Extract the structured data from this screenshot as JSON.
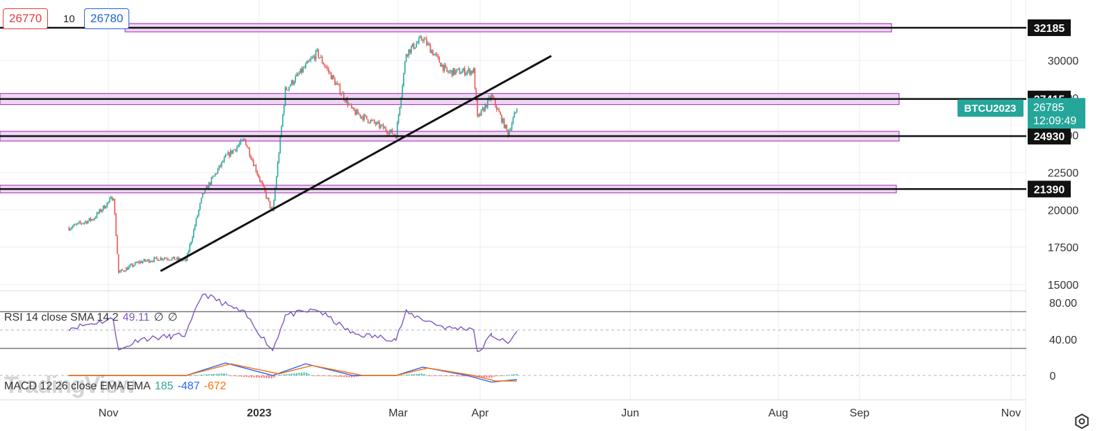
{
  "header": {
    "bid": "26770",
    "spread": "10",
    "ask": "26780"
  },
  "symbol": {
    "name": "BTCU2023",
    "price": "26785",
    "countdown": "12:09:49"
  },
  "rsi_label": {
    "text": "RSI 14 close SMA 14 2",
    "value": "49.11",
    "extra1": "∅",
    "extra2": "∅"
  },
  "macd_label": {
    "text": "MACD 12 26 close EMA EMA",
    "hist": "185",
    "macd": "-487",
    "signal": "-672"
  },
  "watermark": "TradingView",
  "colors": {
    "up": "#26a69a",
    "down": "#ef5350",
    "zone_fill": "#e9c8f0",
    "zone_border": "#9c27b0",
    "rsi": "#7e57c2",
    "macd": "#2962ff",
    "signal": "#ff6d00",
    "symbol_badge": "#26a69a"
  },
  "chart_data": {
    "type": "candlestick",
    "price_axis_ticks": [
      "15000",
      "17500",
      "20000",
      "22500",
      "25000",
      "27500",
      "30000"
    ],
    "level_labels": [
      "32185",
      "27415",
      "24930",
      "21390"
    ],
    "levels": [
      32185,
      27415,
      24930,
      21390
    ],
    "x_tick_labels": [
      "Nov",
      "2023",
      "Mar",
      "Apr",
      "Jun",
      "Aug",
      "Sep",
      "Nov"
    ],
    "rsi_ticks": [
      "80.00",
      "40.00"
    ],
    "macd_ticks": [
      "0"
    ],
    "price_range": [
      15000,
      33000
    ],
    "trendline": {
      "from": [
        "2022-12-12",
        15900
      ],
      "to": [
        "2023-10-15",
        30300
      ]
    },
    "key_points": [
      [
        "2022-10-01",
        18800
      ],
      [
        "2022-10-20",
        19400
      ],
      [
        "2022-11-05",
        20900
      ],
      [
        "2022-11-09",
        15800
      ],
      [
        "2022-11-25",
        16500
      ],
      [
        "2022-12-15",
        16800
      ],
      [
        "2023-01-01",
        16600
      ],
      [
        "2023-01-14",
        21000
      ],
      [
        "2023-02-01",
        23500
      ],
      [
        "2023-02-16",
        24700
      ],
      [
        "2023-03-10",
        19800
      ],
      [
        "2023-03-20",
        28000
      ],
      [
        "2023-04-14",
        30500
      ],
      [
        "2023-05-12",
        26600
      ],
      [
        "2023-06-15",
        25000
      ],
      [
        "2023-06-23",
        30500
      ],
      [
        "2023-07-06",
        31500
      ],
      [
        "2023-07-25",
        29200
      ],
      [
        "2023-08-15",
        29300
      ],
      [
        "2023-08-18",
        26100
      ],
      [
        "2023-08-29",
        27600
      ],
      [
        "2023-09-11",
        25100
      ],
      [
        "2023-09-18",
        26785
      ]
    ],
    "rsi_points": [
      [
        "2022-10-01",
        52
      ],
      [
        "2022-11-05",
        62
      ],
      [
        "2022-11-09",
        27
      ],
      [
        "2022-11-25",
        40
      ],
      [
        "2022-12-20",
        43
      ],
      [
        "2023-01-01",
        45
      ],
      [
        "2023-01-14",
        90
      ],
      [
        "2023-02-01",
        78
      ],
      [
        "2023-02-16",
        68
      ],
      [
        "2023-03-10",
        28
      ],
      [
        "2023-03-20",
        66
      ],
      [
        "2023-04-14",
        72
      ],
      [
        "2023-05-12",
        46
      ],
      [
        "2023-06-15",
        40
      ],
      [
        "2023-06-23",
        69
      ],
      [
        "2023-07-25",
        52
      ],
      [
        "2023-08-15",
        52
      ],
      [
        "2023-08-18",
        24
      ],
      [
        "2023-08-29",
        45
      ],
      [
        "2023-09-11",
        35
      ],
      [
        "2023-09-18",
        49
      ]
    ],
    "macd_points": [
      [
        "2022-10-01",
        0
      ],
      [
        "2023-01-01",
        0
      ],
      [
        "2023-02-01",
        1500
      ],
      [
        "2023-03-10",
        0
      ],
      [
        "2023-04-05",
        1400
      ],
      [
        "2023-05-12",
        0
      ],
      [
        "2023-06-15",
        0
      ],
      [
        "2023-07-06",
        1000
      ],
      [
        "2023-08-10",
        0
      ],
      [
        "2023-08-29",
        -800
      ],
      [
        "2023-09-18",
        -487
      ]
    ],
    "signal_points": [
      [
        "2022-10-01",
        0
      ],
      [
        "2023-01-01",
        0
      ],
      [
        "2023-02-05",
        1400
      ],
      [
        "2023-03-15",
        200
      ],
      [
        "2023-04-10",
        1200
      ],
      [
        "2023-05-20",
        0
      ],
      [
        "2023-06-15",
        0
      ],
      [
        "2023-07-10",
        900
      ],
      [
        "2023-08-15",
        0
      ],
      [
        "2023-09-01",
        -650
      ],
      [
        "2023-09-18",
        -672
      ]
    ]
  }
}
